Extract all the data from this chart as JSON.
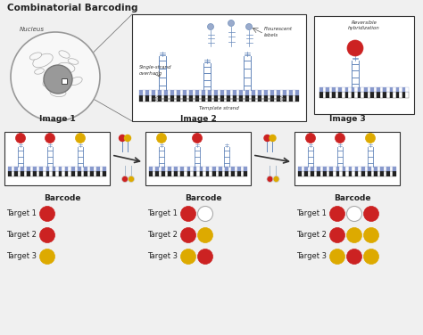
{
  "title": "Combinatorial Barcoding",
  "bg_color": "#f0f0f0",
  "red": "#cc2222",
  "yellow": "#ddaa00",
  "white_circle": "#ffffff",
  "dna_color": "#6688bb",
  "dark": "#222222",
  "text_color": "#222222",
  "nucleus_label": "Nucleus",
  "single_strand_label": "Single-strand\noverhang",
  "template_strand_label": "Template strand",
  "fluorescent_label": "Flourescent\nlabels",
  "reversible_label": "Reversible\nhybridization",
  "image1_label": "Image 1",
  "image2_label": "Image 2",
  "image3_label": "Image 3",
  "barcode_label": "Barcode",
  "target1_label": "Target 1",
  "target2_label": "Target 2",
  "target3_label": "Target 3"
}
